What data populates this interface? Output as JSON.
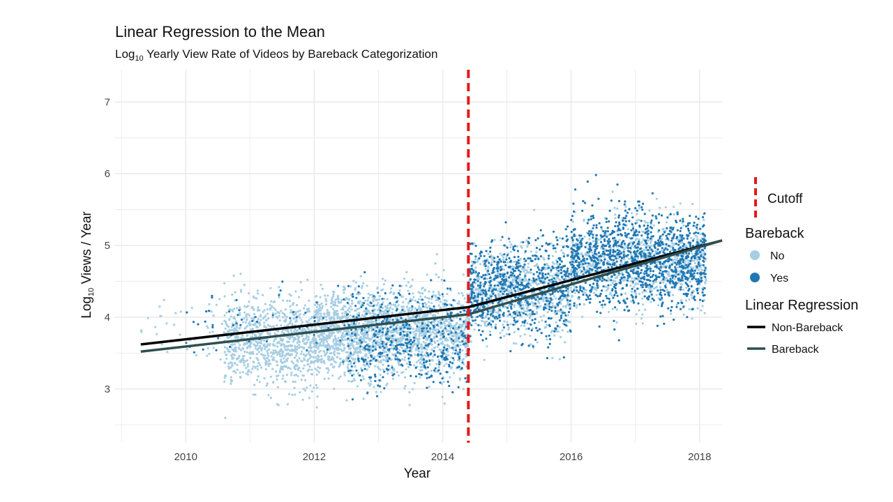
{
  "chart_data": {
    "type": "scatter",
    "title": "Linear Regression to the Mean",
    "subtitle": {
      "prefix": "Log",
      "sub": "10",
      "rest": " Yearly View Rate of Videos by Bareback Categorization"
    },
    "xlabel": "Year",
    "ylabel": {
      "prefix": "Log",
      "sub": "10",
      "rest": " Views / Year"
    },
    "xlim": [
      2008.9,
      2018.35
    ],
    "ylim": [
      2.25,
      7.45
    ],
    "x_ticks": [
      2010,
      2012,
      2014,
      2016,
      2018
    ],
    "y_ticks": [
      3,
      4,
      5,
      6,
      7
    ],
    "grid": true,
    "cutoff_x": 2014.4,
    "series": [
      {
        "name": "No",
        "color": "#a6cee3",
        "point_clusters": [
          {
            "x_range": [
              2009.3,
              2010.6
            ],
            "y_center": 3.9,
            "y_spread": 0.5,
            "count": 40
          },
          {
            "x_range": [
              2010.6,
              2012.0
            ],
            "y_center": 3.65,
            "y_spread": 0.55,
            "count": 900
          },
          {
            "x_range": [
              2012.0,
              2013.2
            ],
            "y_center": 3.75,
            "y_spread": 0.55,
            "count": 1100
          },
          {
            "x_range": [
              2013.2,
              2014.4
            ],
            "y_center": 3.8,
            "y_spread": 0.55,
            "count": 900
          },
          {
            "x_range": [
              2014.4,
              2016.0
            ],
            "y_center": 4.35,
            "y_spread": 0.55,
            "count": 800
          },
          {
            "x_range": [
              2016.0,
              2018.1
            ],
            "y_center": 4.75,
            "y_spread": 0.55,
            "count": 900
          }
        ]
      },
      {
        "name": "Yes",
        "color": "#1f78b4",
        "point_clusters": [
          {
            "x_range": [
              2010.0,
              2012.5
            ],
            "y_center": 3.9,
            "y_spread": 0.55,
            "count": 60
          },
          {
            "x_range": [
              2012.5,
              2014.4
            ],
            "y_center": 3.7,
            "y_spread": 0.6,
            "count": 450
          },
          {
            "x_range": [
              2014.4,
              2016.0
            ],
            "y_center": 4.4,
            "y_spread": 0.6,
            "count": 700
          },
          {
            "x_range": [
              2016.0,
              2018.1
            ],
            "y_center": 4.8,
            "y_spread": 0.6,
            "count": 1200
          }
        ]
      }
    ],
    "regressions": [
      {
        "name": "Non-Bareback",
        "color": "#000000",
        "points": [
          [
            2009.3,
            3.62
          ],
          [
            2014.4,
            4.14
          ],
          [
            2018.35,
            5.07
          ]
        ]
      },
      {
        "name": "Bareback",
        "color": "#2f4f4f",
        "points": [
          [
            2009.3,
            3.52
          ],
          [
            2014.4,
            4.04
          ],
          [
            2018.35,
            5.07
          ]
        ]
      }
    ],
    "legend": {
      "placement": "right",
      "cutoff_label": "Cutoff",
      "cutoff_color": "#e41a1c",
      "points_title": "Bareback",
      "points_items": [
        {
          "label": "No",
          "color": "#a6cee3"
        },
        {
          "label": "Yes",
          "color": "#1f78b4"
        }
      ],
      "lines_title": "Linear Regression",
      "lines_items": [
        {
          "label": "Non-Bareback",
          "color": "#000000"
        },
        {
          "label": "Bareback",
          "color": "#2f4f4f"
        }
      ]
    }
  }
}
